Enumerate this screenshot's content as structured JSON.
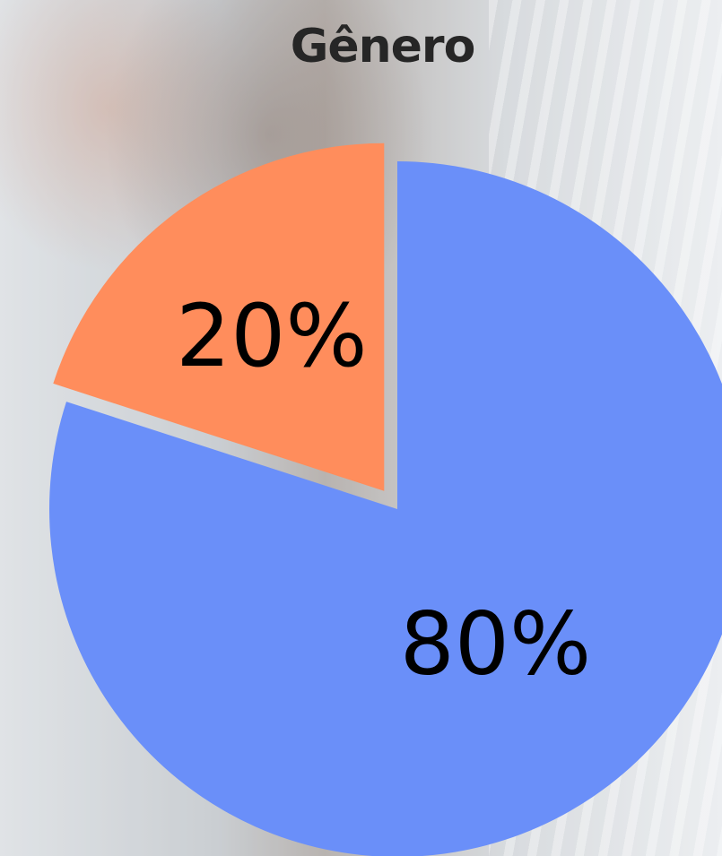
{
  "chart_data": {
    "type": "pie",
    "title": "Gênero",
    "slices": [
      {
        "value": 80,
        "label": "80%",
        "color": "#6a8ff9"
      },
      {
        "value": 20,
        "label": "20%",
        "color": "#ff8d5c"
      }
    ]
  }
}
